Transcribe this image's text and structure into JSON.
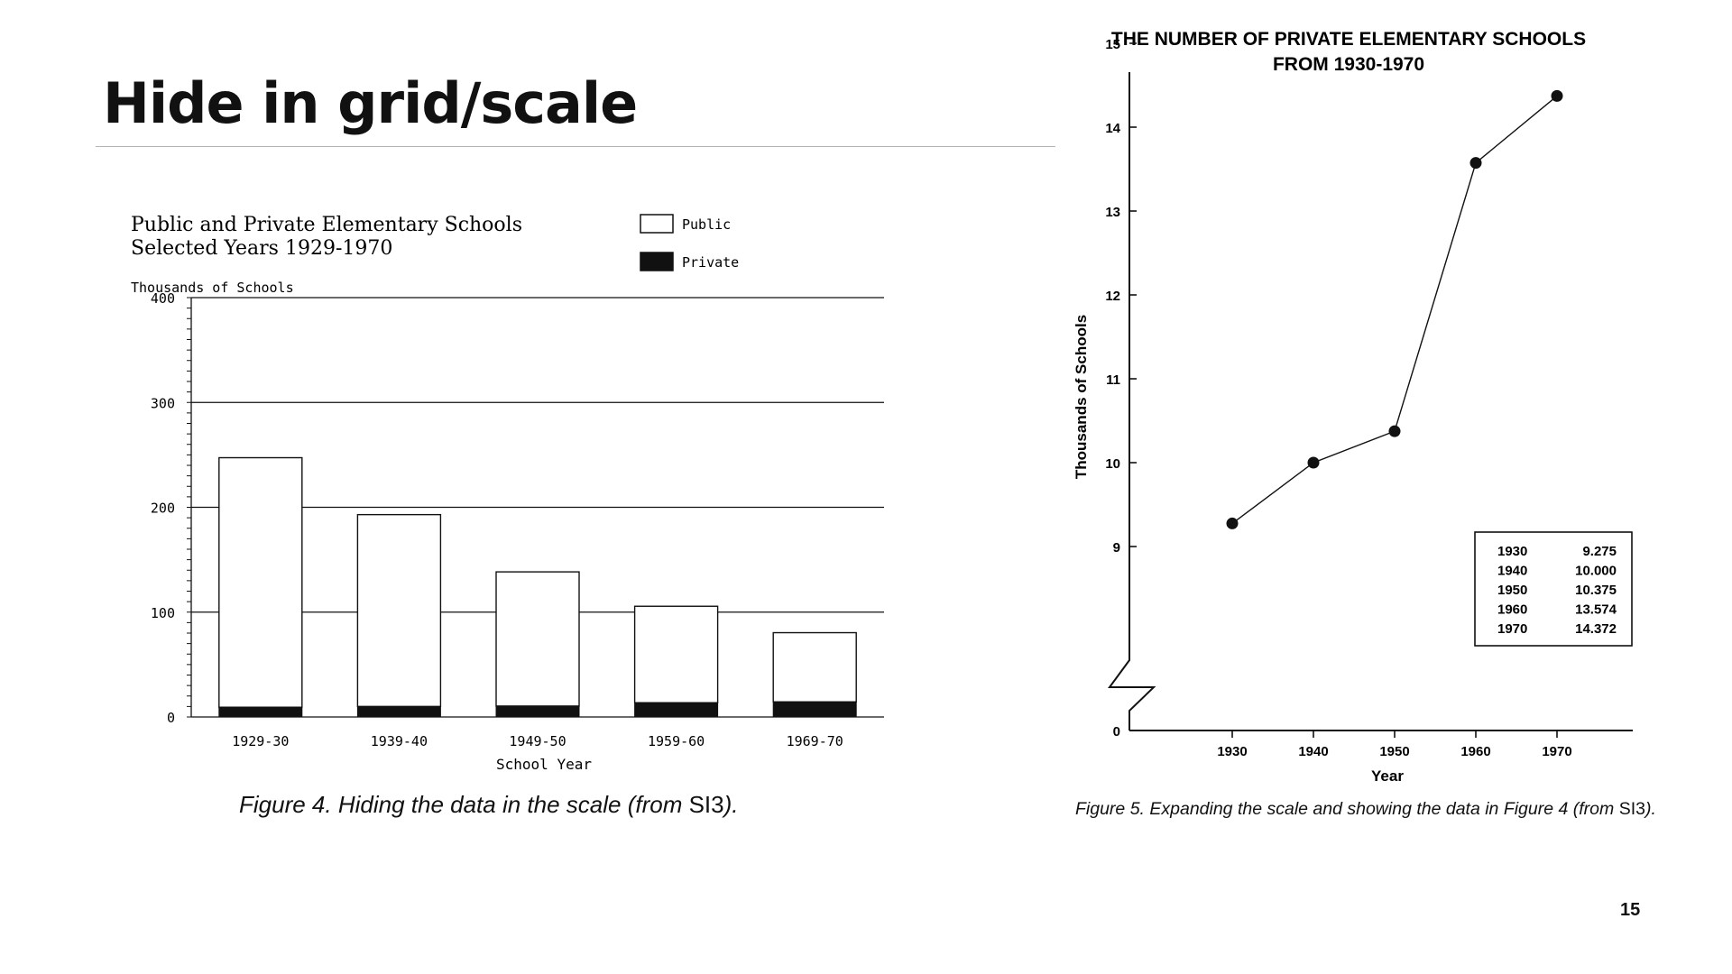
{
  "slide": {
    "title": "Hide in grid/scale",
    "page_number": "15"
  },
  "figure_left": {
    "caption_prefix": "Figure 4. Hiding the data in the scale (from ",
    "caption_source": "SI3",
    "caption_suffix": ")."
  },
  "figure_right": {
    "caption_prefix": "Figure 5. Expanding the scale and showing the data in Figure 4 (from ",
    "caption_source": "SI3",
    "caption_suffix": ")."
  },
  "colors": {
    "ink": "#111111",
    "paper": "#ffffff",
    "rule": "#b3b3b3"
  },
  "chart_data": [
    {
      "type": "bar",
      "stacked": true,
      "title": "Public and Private Elementary Schools",
      "subtitle": "Selected Years 1929-1970",
      "ylabel": "Thousands of Schools",
      "xlabel": "School Year",
      "categories": [
        "1929-30",
        "1939-40",
        "1949-50",
        "1959-60",
        "1969-70"
      ],
      "series": [
        {
          "name": "Public",
          "values": [
            238,
            183,
            128,
            92,
            66
          ],
          "color": "#ffffff"
        },
        {
          "name": "Private",
          "values": [
            9.3,
            10.0,
            10.4,
            13.6,
            14.4
          ],
          "color": "#111111"
        }
      ],
      "ylim": [
        0,
        400
      ],
      "yticks": [
        0,
        100,
        200,
        300,
        400
      ],
      "ytick_labels": [
        "0",
        "100",
        "200",
        "300",
        "400"
      ],
      "grid": true,
      "legend_position": "top-right"
    },
    {
      "type": "line",
      "title": "THE NUMBER OF PRIVATE ELEMENTARY SCHOOLS",
      "subtitle": "FROM 1930-1970",
      "ylabel": "Thousands of Schools",
      "xlabel": "Year",
      "x": [
        1930,
        1940,
        1950,
        1960,
        1970
      ],
      "y": [
        9.275,
        10.0,
        10.375,
        13.574,
        14.372
      ],
      "xticks": [
        "1930",
        "1940",
        "1950",
        "1960",
        "1970"
      ],
      "yticks": [
        "0",
        "9",
        "10",
        "11",
        "12",
        "13",
        "14",
        "15"
      ],
      "ylim": [
        8.5,
        16
      ],
      "axis_break": true,
      "grid": false,
      "table": {
        "rows": [
          {
            "year": "1930",
            "value": "9.275"
          },
          {
            "year": "1940",
            "value": "10.000"
          },
          {
            "year": "1950",
            "value": "10.375"
          },
          {
            "year": "1960",
            "value": "13.574"
          },
          {
            "year": "1970",
            "value": "14.372"
          }
        ]
      }
    }
  ]
}
